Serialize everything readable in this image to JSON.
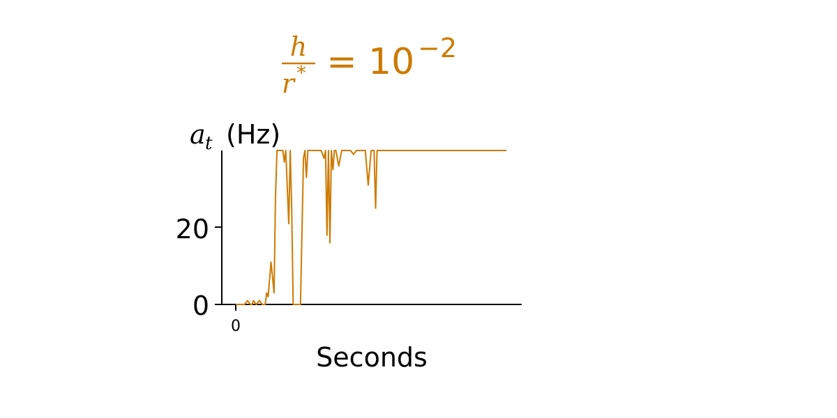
{
  "title": {
    "numerator": "h",
    "denominator": "r",
    "denominator_sup": "*",
    "equals": "=",
    "base": "10",
    "exponent": "−2",
    "color": "#cc7a00"
  },
  "chart_data": {
    "type": "line",
    "ylabel_var": "a",
    "ylabel_sub": "t",
    "ylabel_unit": "(Hz)",
    "xlabel": "Seconds",
    "x_ticks": [
      "0"
    ],
    "y_ticks": [
      "0",
      "20"
    ],
    "ylim": [
      0,
      40
    ],
    "grid": false,
    "series": [
      {
        "color": "#cc7a00",
        "x": [
          0.0,
          0.3,
          0.4,
          0.5,
          0.55,
          0.6,
          0.7,
          0.8,
          0.9,
          1.0,
          1.05,
          1.1,
          1.2,
          1.3,
          1.35,
          1.4,
          1.5,
          1.6,
          1.65,
          1.7,
          1.8,
          1.85,
          1.9,
          1.95,
          2.0,
          2.1,
          2.2,
          2.3,
          2.35,
          2.4,
          2.45,
          2.5,
          2.55,
          2.6,
          2.7,
          2.8,
          2.9,
          3.0,
          3.05,
          3.1,
          3.15,
          3.2,
          3.25,
          3.3,
          3.35,
          3.4,
          3.5,
          3.6,
          3.7,
          3.8,
          3.9,
          4.0,
          4.1,
          4.2,
          4.3,
          4.4,
          4.5,
          4.6,
          4.7,
          4.75,
          4.8,
          4.85,
          4.9,
          5.0,
          5.1,
          5.2,
          5.3,
          5.4,
          5.5,
          5.6,
          5.7,
          5.8,
          5.9,
          6.0,
          6.1,
          6.2,
          6.3,
          6.4,
          6.45,
          6.5,
          6.6,
          6.7,
          6.8,
          6.9,
          7.0,
          7.1,
          7.2,
          7.3,
          7.4,
          7.5,
          7.6,
          7.7,
          7.8,
          7.9,
          8.0,
          8.05,
          8.1,
          8.2,
          8.3,
          8.4,
          8.5,
          8.6,
          8.7,
          8.8,
          8.9,
          9.0,
          9.05,
          9.1,
          9.2
        ],
        "y": [
          0,
          0,
          1,
          0,
          0,
          1,
          0,
          1,
          0,
          0,
          3,
          2,
          11,
          3,
          28,
          40,
          40,
          40,
          37,
          40,
          21,
          40,
          25,
          0,
          0,
          0,
          0,
          38,
          40,
          33,
          40,
          40,
          40,
          40,
          40,
          40,
          40,
          38,
          40,
          18,
          40,
          16,
          40,
          35,
          40,
          40,
          36,
          40,
          40,
          40,
          40,
          39,
          40,
          40,
          40,
          40,
          31,
          40,
          40,
          25,
          40,
          40,
          40,
          40,
          40,
          40,
          40,
          40,
          40,
          40,
          40,
          40,
          40,
          40,
          40,
          40,
          40,
          40,
          40,
          40,
          40,
          40,
          40,
          40,
          40,
          40,
          40,
          40,
          40,
          40,
          40,
          40,
          40,
          40,
          40,
          40,
          40,
          40,
          40,
          40,
          40,
          40,
          40,
          40,
          40,
          40,
          40,
          40,
          40
        ]
      }
    ]
  }
}
